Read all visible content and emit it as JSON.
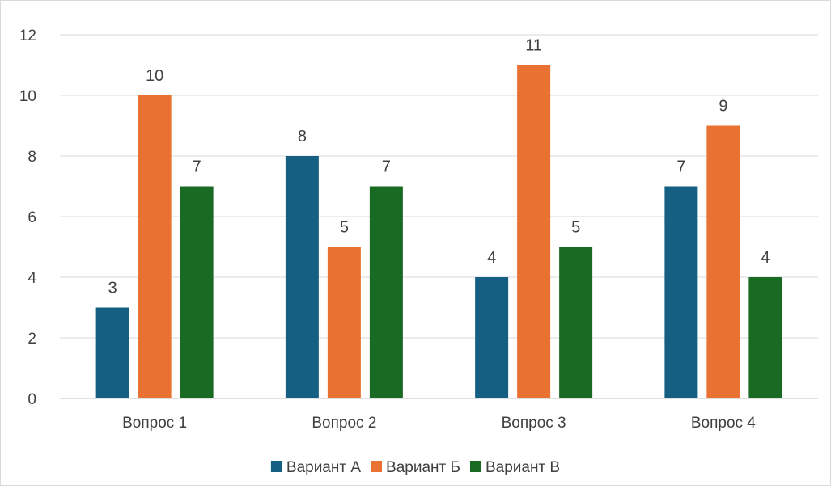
{
  "chart_data": {
    "type": "bar",
    "title": "",
    "xlabel": "",
    "ylabel": "",
    "categories": [
      "Вопрос 1",
      "Вопрос 2",
      "Вопрос 3",
      "Вопрос 4"
    ],
    "series": [
      {
        "name": "Вариант А",
        "values": [
          3,
          8,
          4,
          7
        ],
        "color": "#156082"
      },
      {
        "name": "Вариант Б",
        "values": [
          10,
          5,
          11,
          9
        ],
        "color": "#E97132"
      },
      {
        "name": "Вариант В",
        "values": [
          7,
          7,
          5,
          4
        ],
        "color": "#196B24"
      }
    ],
    "ylim": [
      0,
      12
    ],
    "yticks": [
      0,
      2,
      4,
      6,
      8,
      10,
      12
    ],
    "grid": true,
    "data_labels": true,
    "legend": "bottom"
  }
}
